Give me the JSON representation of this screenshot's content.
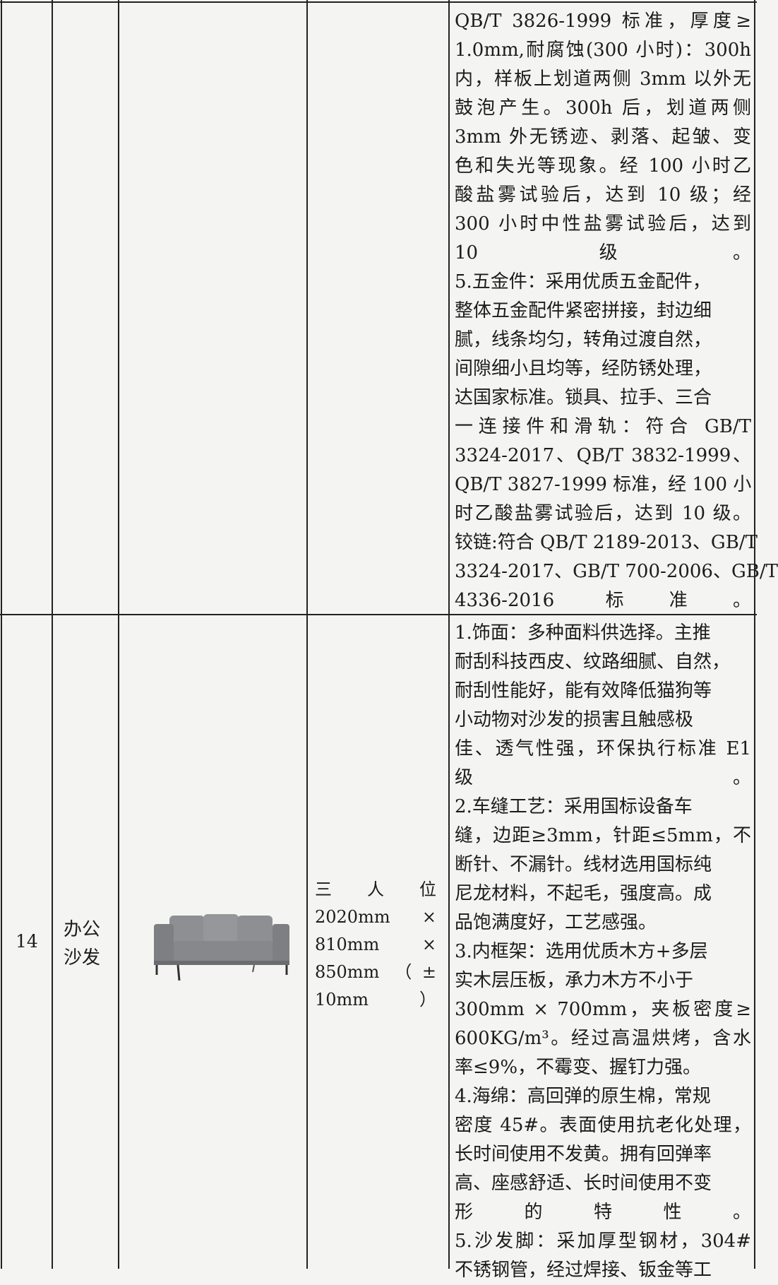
{
  "table": {
    "rows": [
      {
        "spec": [
          "QB/T 3826-1999 标准，厚度≥",
          "1.0mm,耐腐蚀(300 小时)：300h",
          "内，样板上划道两侧 3mm 以外无",
          "鼓泡产生。300h 后，划道两侧",
          "3mm 外无锈迹、剥落、起皱、变",
          "色和失光等现象。经 100 小时乙",
          "酸盐雾试验后，达到 10 级；经",
          "300 小时中性盐雾试验后，达到",
          "10 级。",
          "5.五金件：采用优质五金配件，",
          "整体五金配件紧密拼接，封边细",
          "腻，线条均匀，转角过渡自然，",
          "间隙细小且均等，经防锈处理，",
          "达国家标准。锁具、拉手、三合",
          "一连接件和滑轨：符合 GB/T",
          "3324-2017、QB/T 3832-1999、",
          "QB/T 3827-1999 标准，经 100 小",
          "时乙酸盐雾试验后，达到 10 级。",
          "铰链:符合 QB/T 2189-2013、GB/T",
          "3324-2017、GB/T 700-2006、GB/T",
          "4336-2016 标准。"
        ]
      },
      {
        "no": "14",
        "name": [
          "办公",
          "沙发"
        ],
        "size": [
          "三 人 位",
          "2020mm ×",
          "810mm ×",
          "850mm （±",
          "10mm）"
        ],
        "spec": [
          "1.饰面：多种面料供选择。主推",
          "耐刮科技西皮、纹路细腻、自然，",
          "耐刮性能好，能有效降低猫狗等",
          "小动物对沙发的损害且触感极",
          "佳、透气性强，环保执行标准 E1",
          "级 。",
          "2.车缝工艺：采用国标设备车",
          "缝，边距≥3mm，针距≤5mm，不",
          "断针、不漏针。线材选用国标纯",
          "尼龙材料，不起毛，强度高。成",
          "品饱满度好，工艺感强。",
          "3.内框架：选用优质木方+多层",
          "实木层压板，承力木方不小于",
          "300mm × 700mm，夹板密度≥",
          "600KG/m³。经过高温烘烤，含水",
          "率≤9%，不霉变、握钉力强。",
          "4.海绵：高回弹的原生棉，常规",
          "密度 45#。表面使用抗老化处理，",
          "长时间使用不发黄。拥有回弹率",
          "高、座感舒适、长时间使用不变",
          "形 的 特 性 。",
          "5.沙发脚：采加厚型钢材，304#",
          "不锈钢管，经过焊接、钣金等工"
        ]
      }
    ]
  }
}
